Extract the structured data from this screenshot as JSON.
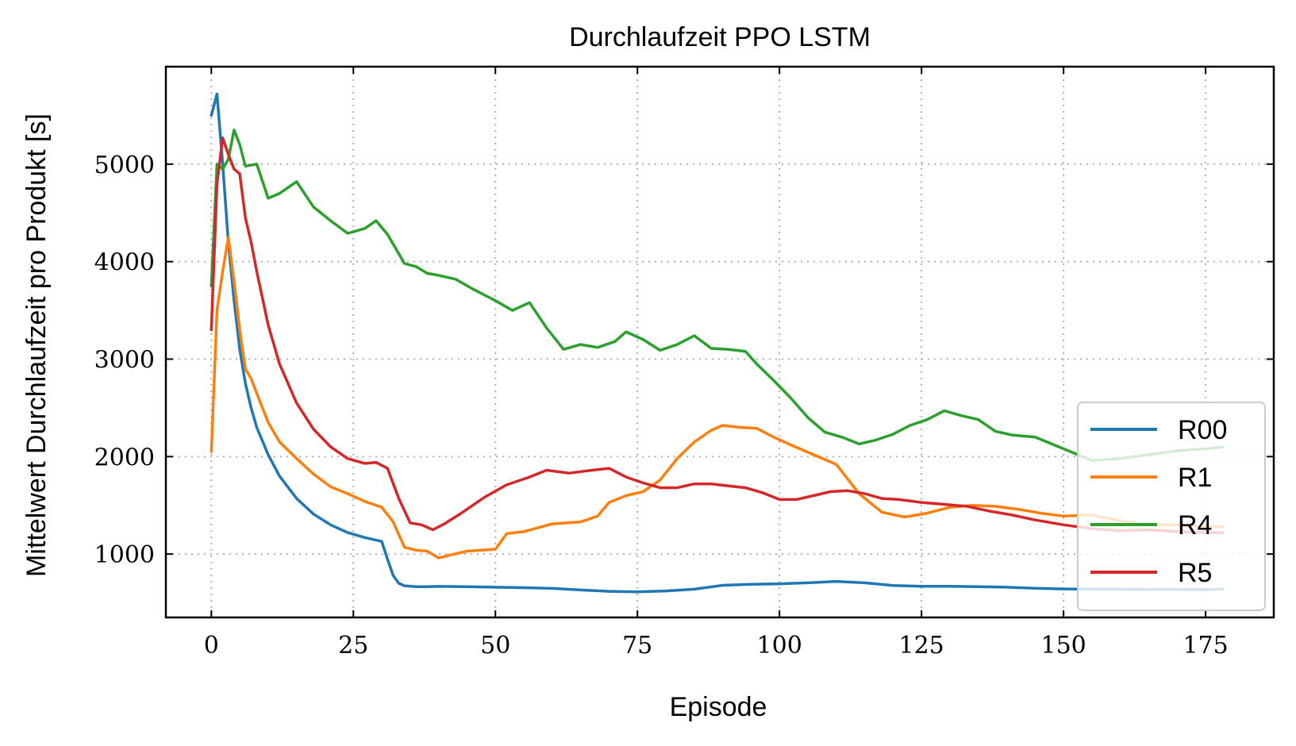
{
  "chart_data": {
    "type": "line",
    "title": "Durchlaufzeit PPO LSTM",
    "xlabel": "Episode",
    "ylabel": "Mittelwert Durchlaufzeit pro Produkt [s]",
    "xlim": [
      -8,
      187
    ],
    "ylim": [
      350,
      6000
    ],
    "xticks": [
      0,
      25,
      50,
      75,
      100,
      125,
      150,
      175
    ],
    "yticks": [
      1000,
      2000,
      3000,
      4000,
      5000
    ],
    "grid": true,
    "legend_position": "lower-right",
    "series": [
      {
        "name": "R00",
        "color": "#1f77b4",
        "x": [
          0,
          1,
          2,
          3,
          4,
          5,
          6,
          7,
          8,
          10,
          12,
          15,
          18,
          21,
          24,
          27,
          30,
          31,
          32,
          33,
          34,
          36,
          38,
          40,
          45,
          50,
          55,
          60,
          65,
          70,
          75,
          80,
          85,
          90,
          95,
          100,
          105,
          110,
          115,
          120,
          125,
          130,
          135,
          140,
          145,
          150,
          155,
          160,
          165,
          170,
          175,
          178
        ],
        "y": [
          5500,
          5720,
          5000,
          4200,
          3600,
          3100,
          2750,
          2500,
          2300,
          2020,
          1800,
          1570,
          1410,
          1300,
          1220,
          1170,
          1130,
          950,
          780,
          700,
          675,
          665,
          665,
          668,
          665,
          660,
          655,
          648,
          632,
          618,
          612,
          622,
          640,
          680,
          690,
          695,
          705,
          720,
          705,
          678,
          670,
          670,
          665,
          660,
          650,
          642,
          640,
          640,
          638,
          638,
          635,
          640
        ]
      },
      {
        "name": "R1",
        "color": "#ff7f0e",
        "x": [
          0,
          1,
          2,
          3,
          4,
          5,
          6,
          7,
          8,
          10,
          12,
          15,
          18,
          21,
          24,
          27,
          30,
          32,
          34,
          36,
          38,
          40,
          42,
          45,
          50,
          52,
          55,
          60,
          65,
          68,
          70,
          73,
          76,
          79,
          82,
          85,
          88,
          90,
          93,
          96,
          99,
          102,
          106,
          110,
          114,
          118,
          122,
          126,
          130,
          134,
          138,
          142,
          146,
          150,
          155,
          160,
          165,
          170,
          175,
          178
        ],
        "y": [
          2050,
          3500,
          3900,
          4250,
          3800,
          3300,
          2900,
          2800,
          2650,
          2350,
          2150,
          1980,
          1820,
          1690,
          1620,
          1540,
          1480,
          1330,
          1070,
          1040,
          1030,
          960,
          990,
          1030,
          1050,
          1210,
          1230,
          1310,
          1330,
          1390,
          1530,
          1600,
          1640,
          1760,
          1980,
          2150,
          2270,
          2320,
          2300,
          2290,
          2200,
          2120,
          2020,
          1920,
          1620,
          1430,
          1380,
          1420,
          1480,
          1500,
          1490,
          1460,
          1420,
          1390,
          1400,
          1340,
          1300,
          1300,
          1280,
          1280
        ]
      },
      {
        "name": "R4",
        "color": "#2ca02c",
        "x": [
          0,
          1,
          2,
          3,
          4,
          5,
          6,
          8,
          10,
          12,
          15,
          18,
          21,
          24,
          27,
          29,
          31,
          34,
          36,
          38,
          40,
          43,
          46,
          50,
          53,
          56,
          59,
          62,
          65,
          68,
          71,
          73,
          76,
          79,
          82,
          85,
          88,
          91,
          94,
          96,
          99,
          102,
          105,
          108,
          111,
          114,
          117,
          120,
          123,
          126,
          129,
          132,
          135,
          138,
          141,
          145,
          150,
          155,
          160,
          165,
          170,
          175,
          178
        ],
        "y": [
          3750,
          5000,
          4950,
          5050,
          5350,
          5200,
          4980,
          5000,
          4650,
          4700,
          4820,
          4560,
          4420,
          4290,
          4340,
          4420,
          4280,
          3980,
          3950,
          3880,
          3860,
          3820,
          3720,
          3600,
          3500,
          3580,
          3320,
          3100,
          3150,
          3120,
          3180,
          3280,
          3200,
          3090,
          3150,
          3240,
          3110,
          3100,
          3080,
          2950,
          2780,
          2600,
          2400,
          2250,
          2200,
          2130,
          2170,
          2230,
          2320,
          2380,
          2470,
          2420,
          2380,
          2260,
          2220,
          2200,
          2080,
          1960,
          1980,
          2020,
          2060,
          2080,
          2100
        ]
      },
      {
        "name": "R5",
        "color": "#d62728",
        "x": [
          0,
          1,
          2,
          3,
          4,
          5,
          6,
          7,
          8,
          10,
          12,
          15,
          18,
          21,
          24,
          27,
          29,
          31,
          33,
          35,
          37,
          39,
          41,
          44,
          48,
          52,
          56,
          59,
          63,
          67,
          70,
          73,
          76,
          79,
          82,
          85,
          88,
          91,
          94,
          97,
          100,
          103,
          106,
          109,
          112,
          115,
          118,
          121,
          125,
          129,
          133,
          137,
          141,
          145,
          150,
          155,
          160,
          165,
          170,
          175,
          178
        ],
        "y": [
          3300,
          4800,
          5270,
          5100,
          4950,
          4900,
          4450,
          4200,
          3900,
          3350,
          2950,
          2550,
          2280,
          2100,
          1980,
          1930,
          1940,
          1880,
          1570,
          1320,
          1300,
          1250,
          1310,
          1420,
          1580,
          1710,
          1790,
          1860,
          1830,
          1860,
          1880,
          1790,
          1730,
          1680,
          1680,
          1720,
          1720,
          1700,
          1680,
          1630,
          1560,
          1560,
          1600,
          1640,
          1650,
          1620,
          1570,
          1560,
          1530,
          1510,
          1490,
          1440,
          1400,
          1350,
          1300,
          1260,
          1240,
          1250,
          1230,
          1220,
          1220
        ]
      }
    ]
  }
}
